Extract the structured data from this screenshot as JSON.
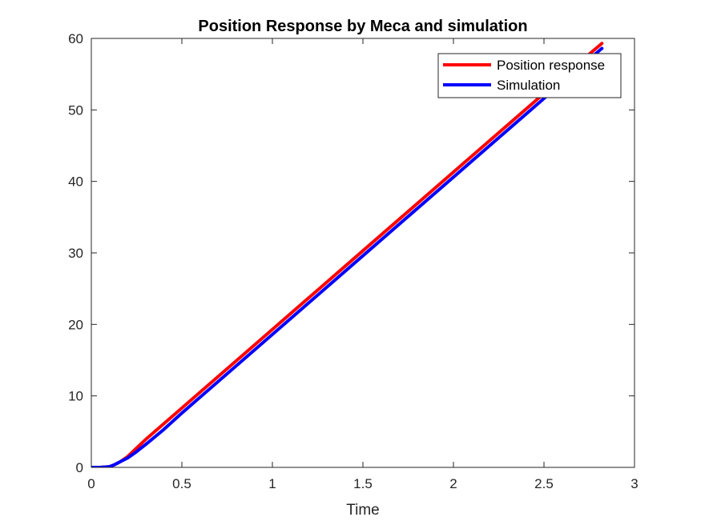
{
  "chart_data": {
    "type": "line",
    "title": "Position Response by Meca and simulation",
    "xlabel": "Time",
    "ylabel": "",
    "xlim": [
      0,
      3
    ],
    "ylim": [
      0,
      60
    ],
    "xticks": [
      0,
      0.5,
      1,
      1.5,
      2,
      2.5,
      3
    ],
    "xtick_labels": [
      "0",
      "0.5",
      "1",
      "1.5",
      "2",
      "2.5",
      "3"
    ],
    "yticks": [
      0,
      10,
      20,
      30,
      40,
      50,
      60
    ],
    "ytick_labels": [
      "0",
      "10",
      "20",
      "30",
      "40",
      "50",
      "60"
    ],
    "grid": false,
    "legend_position": "top-right",
    "series": [
      {
        "name": "Position response",
        "color": "#ff0000",
        "x": [
          0,
          0.05,
          0.1,
          0.13,
          0.16,
          0.2,
          0.25,
          0.3,
          0.4,
          0.5,
          0.75,
          1,
          1.25,
          1.5,
          1.75,
          2,
          2.25,
          2.5,
          2.75,
          2.82
        ],
        "y": [
          0,
          0,
          0.1,
          0.4,
          0.8,
          1.5,
          2.7,
          3.9,
          6.1,
          8.3,
          13.8,
          19.3,
          24.8,
          30.3,
          35.8,
          41.3,
          46.8,
          52.3,
          57.8,
          59.3
        ]
      },
      {
        "name": "Simulation",
        "color": "#0000ff",
        "x": [
          0,
          0.05,
          0.1,
          0.13,
          0.16,
          0.2,
          0.25,
          0.3,
          0.4,
          0.5,
          0.75,
          1,
          1.25,
          1.5,
          1.75,
          2,
          2.25,
          2.5,
          2.75,
          2.82
        ],
        "y": [
          0,
          0,
          0.1,
          0.4,
          0.8,
          1.3,
          2.2,
          3.2,
          5.3,
          7.6,
          13.1,
          18.6,
          24.1,
          29.6,
          35.1,
          40.6,
          46.1,
          51.6,
          57.1,
          58.6
        ]
      }
    ]
  }
}
